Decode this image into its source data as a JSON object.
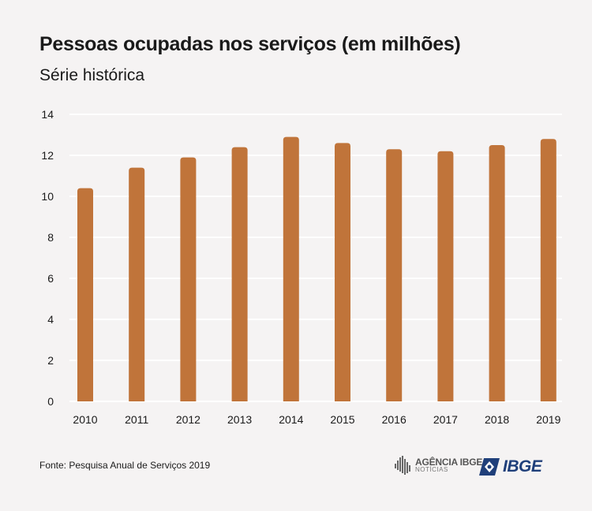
{
  "title": "Pessoas ocupadas nos serviços (em milhões)",
  "subtitle": "Série histórica",
  "source": "Fonte: Pesquisa Anual de Serviços 2019",
  "logos": {
    "agencia_line1": "AGÊNCIA IBGE",
    "agencia_line2": "NOTÍCIAS",
    "ibge": "IBGE"
  },
  "colors": {
    "bar": "#c0743a",
    "grid": "#ffffff",
    "background": "#f5f3f3"
  },
  "chart_data": {
    "type": "bar",
    "title": "Pessoas ocupadas nos serviços (em milhões)",
    "subtitle": "Série histórica",
    "categories": [
      "2010",
      "2011",
      "2012",
      "2013",
      "2014",
      "2015",
      "2016",
      "2017",
      "2018",
      "2019"
    ],
    "values": [
      10.4,
      11.4,
      11.9,
      12.4,
      12.9,
      12.6,
      12.3,
      12.2,
      12.5,
      12.8
    ],
    "ylim": [
      0,
      14
    ],
    "yticks": [
      0,
      2,
      4,
      6,
      8,
      10,
      12,
      14
    ],
    "xlabel": "",
    "ylabel": "",
    "grid": true
  }
}
